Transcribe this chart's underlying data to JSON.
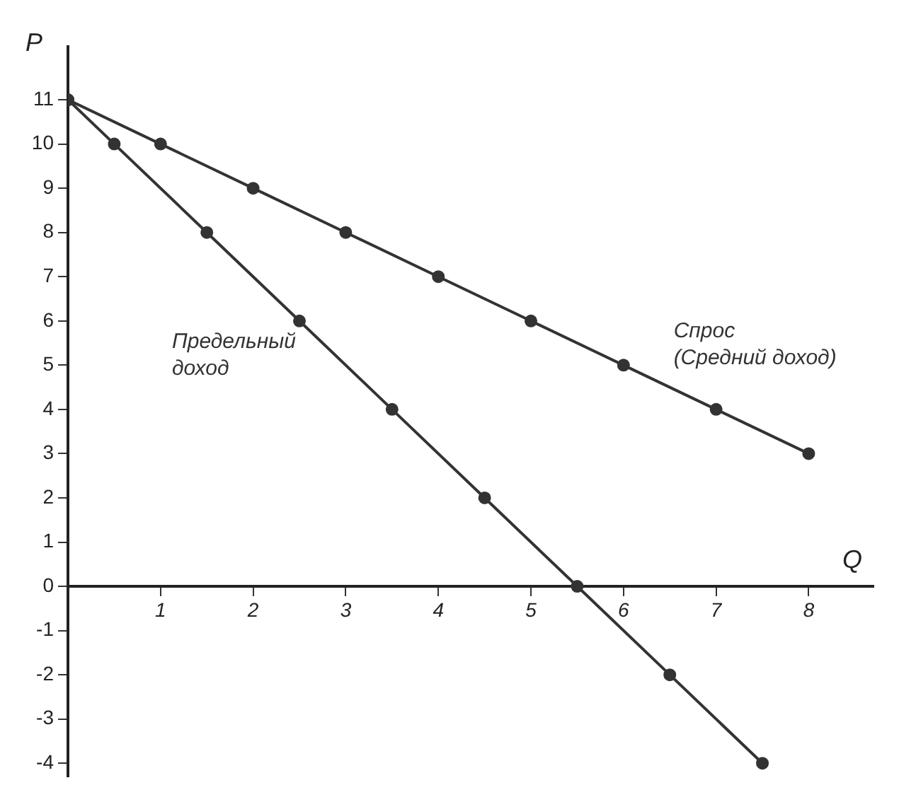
{
  "chart_data": {
    "type": "line",
    "xlabel": "Q",
    "ylabel": "P",
    "xlim": [
      0,
      8.7
    ],
    "ylim": [
      -4.3,
      12.2
    ],
    "xticks": [
      1,
      2,
      3,
      4,
      5,
      6,
      7,
      8
    ],
    "yticks": [
      -4,
      -3,
      -2,
      -1,
      0,
      1,
      2,
      3,
      4,
      5,
      6,
      7,
      8,
      9,
      10,
      11
    ],
    "grid": false,
    "legend": false,
    "marker": "circle",
    "line_style": "solid",
    "series": [
      {
        "name": "Спрос\n(Средний доход)",
        "color": "#333333",
        "x": [
          0,
          1,
          2,
          3,
          4,
          5,
          6,
          7,
          8
        ],
        "values": [
          11,
          10,
          9,
          8,
          7,
          6,
          5,
          4,
          3
        ]
      },
      {
        "name": "Предельный\nдоход",
        "color": "#333333",
        "x": [
          0,
          0.5,
          1.5,
          2.5,
          3.5,
          4.5,
          5.5,
          6.5,
          7.5
        ],
        "values": [
          11,
          10,
          8,
          6,
          4,
          2,
          0,
          -2,
          -4
        ]
      }
    ]
  }
}
